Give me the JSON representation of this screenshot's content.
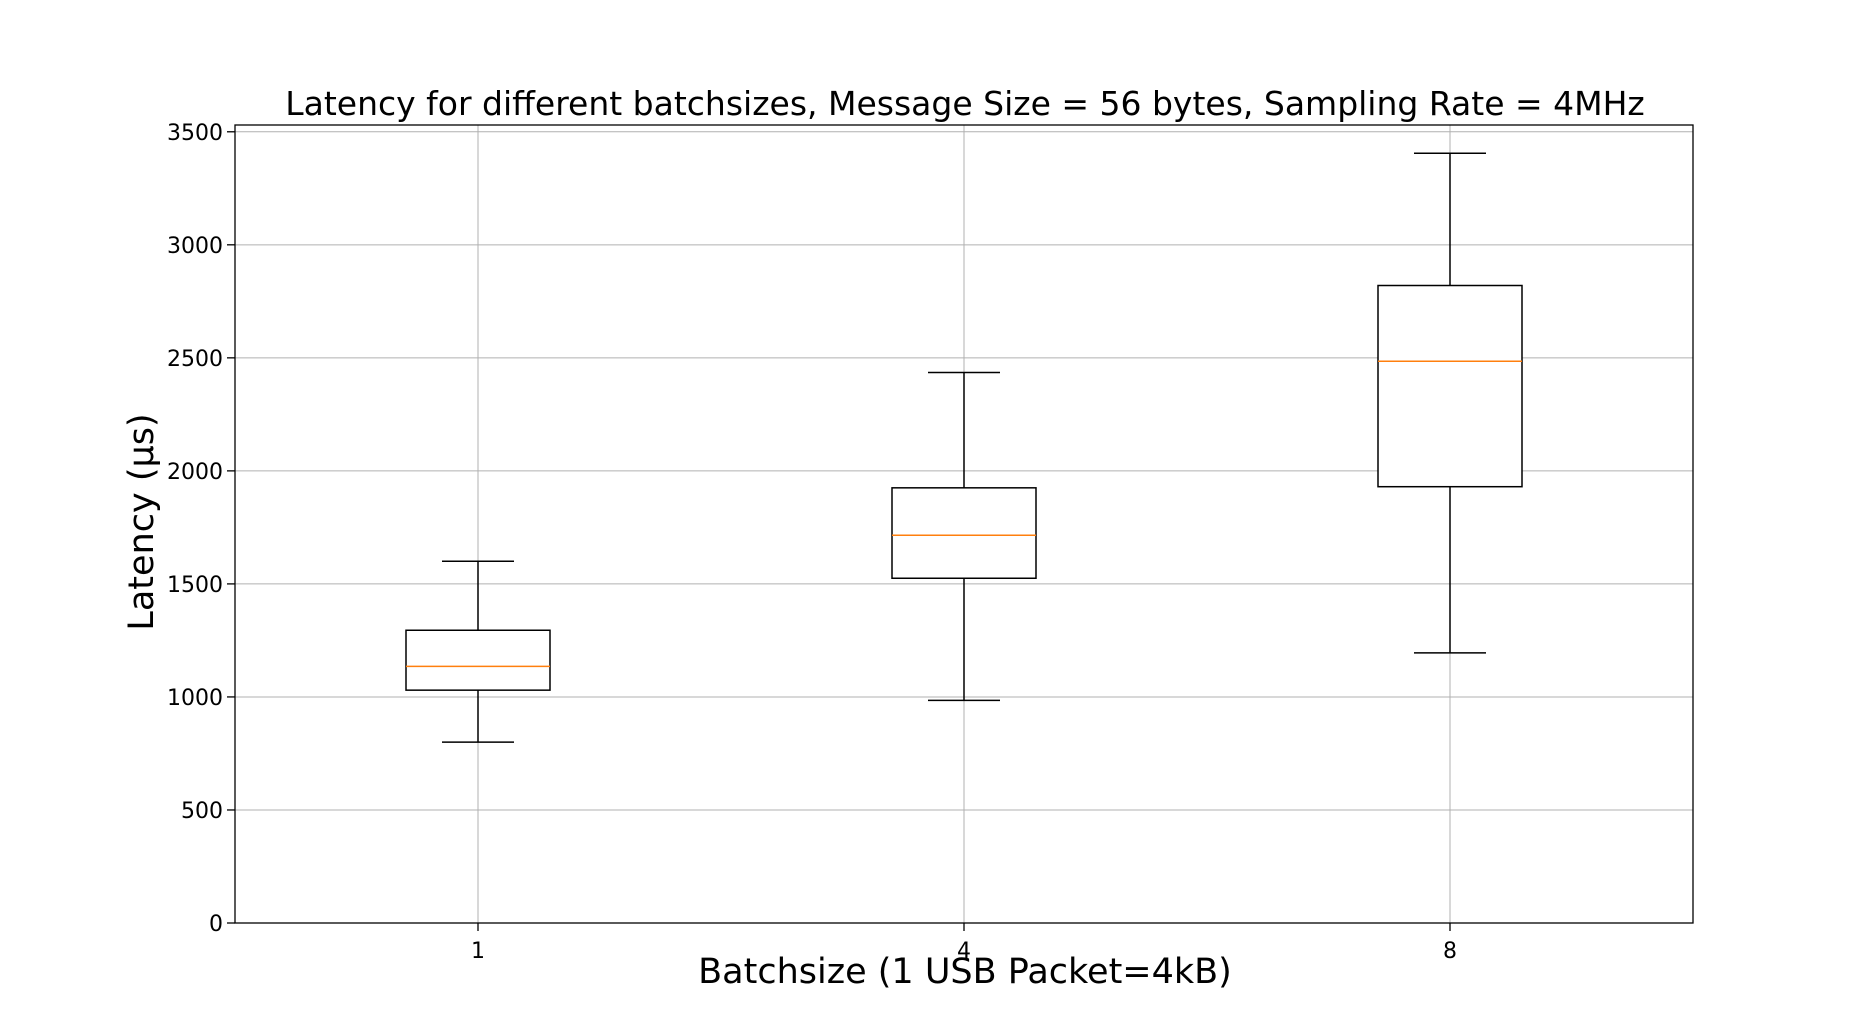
{
  "chart_data": {
    "type": "box",
    "title": "Latency for different batchsizes, Message Size = 56 bytes, Sampling Rate = 4MHz",
    "xlabel": "Batchsize (1 USB Packet=4kB)",
    "ylabel": "Latency (μs)",
    "categories": [
      "1",
      "4",
      "8"
    ],
    "ylim": [
      0,
      3530
    ],
    "yticks": [
      0,
      500,
      1000,
      1500,
      2000,
      2500,
      3000,
      3500
    ],
    "grid": true,
    "boxes": [
      {
        "category": "1",
        "whisker_low": 800,
        "q1": 1030,
        "median": 1135,
        "q3": 1295,
        "whisker_high": 1600
      },
      {
        "category": "4",
        "whisker_low": 985,
        "q1": 1525,
        "median": 1715,
        "q3": 1925,
        "whisker_high": 2435
      },
      {
        "category": "8",
        "whisker_low": 1195,
        "q1": 1930,
        "median": 2485,
        "q3": 2820,
        "whisker_high": 3405
      }
    ],
    "colors": {
      "box": "#000000",
      "median": "#ff7f0e",
      "grid": "#b0b0b0"
    }
  }
}
